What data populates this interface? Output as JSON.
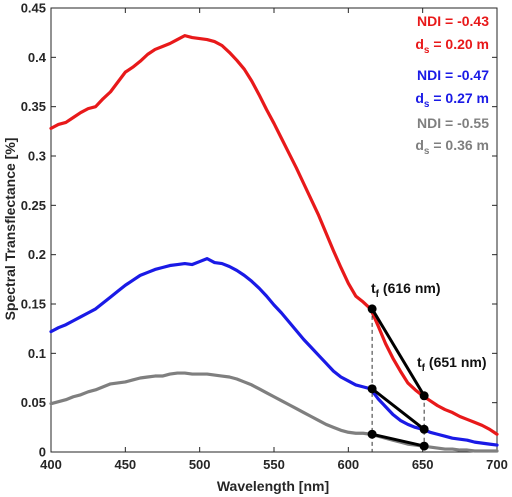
{
  "chart_data": {
    "type": "line",
    "xlabel": "Wavelength [nm]",
    "ylabel": "Spectral Transflectance [%]",
    "xlim": [
      400,
      700
    ],
    "ylim": [
      0,
      0.45
    ],
    "xticks": [
      400,
      450,
      500,
      550,
      600,
      650,
      700
    ],
    "yticks": [
      0,
      0.05,
      0.1,
      0.15,
      0.2,
      0.25,
      0.3,
      0.35,
      0.4,
      0.45
    ],
    "xtick_labels": [
      "400",
      "450",
      "500",
      "550",
      "600",
      "650",
      "700"
    ],
    "ytick_labels": [
      "0",
      "0.05",
      "0.1",
      "0.15",
      "0.2",
      "0.25",
      "0.3",
      "0.35",
      "0.4",
      "0.45"
    ],
    "grid": false,
    "series": [
      {
        "color": "#e8191a",
        "x": [
          400,
          405,
          410,
          415,
          420,
          425,
          430,
          435,
          440,
          445,
          450,
          455,
          460,
          465,
          470,
          475,
          480,
          485,
          490,
          495,
          500,
          505,
          510,
          515,
          520,
          525,
          530,
          535,
          540,
          545,
          550,
          555,
          560,
          565,
          570,
          575,
          580,
          585,
          590,
          595,
          600,
          605,
          610,
          615,
          620,
          625,
          630,
          635,
          640,
          645,
          650,
          655,
          660,
          665,
          670,
          675,
          680,
          685,
          690,
          695,
          700
        ],
        "y": [
          0.328,
          0.332,
          0.334,
          0.339,
          0.344,
          0.348,
          0.35,
          0.358,
          0.365,
          0.375,
          0.385,
          0.39,
          0.396,
          0.403,
          0.408,
          0.411,
          0.414,
          0.418,
          0.422,
          0.42,
          0.419,
          0.418,
          0.416,
          0.412,
          0.405,
          0.397,
          0.388,
          0.376,
          0.362,
          0.347,
          0.333,
          0.318,
          0.303,
          0.288,
          0.272,
          0.256,
          0.24,
          0.222,
          0.204,
          0.187,
          0.171,
          0.158,
          0.152,
          0.145,
          0.128,
          0.11,
          0.095,
          0.082,
          0.07,
          0.063,
          0.057,
          0.052,
          0.047,
          0.043,
          0.04,
          0.036,
          0.033,
          0.03,
          0.027,
          0.023,
          0.018
        ]
      },
      {
        "color": "#1a1ae6",
        "x": [
          400,
          405,
          410,
          415,
          420,
          425,
          430,
          435,
          440,
          445,
          450,
          455,
          460,
          465,
          470,
          475,
          480,
          485,
          490,
          495,
          500,
          505,
          510,
          515,
          520,
          525,
          530,
          535,
          540,
          545,
          550,
          555,
          560,
          565,
          570,
          575,
          580,
          585,
          590,
          595,
          600,
          605,
          610,
          615,
          620,
          625,
          630,
          635,
          640,
          645,
          650,
          655,
          660,
          665,
          670,
          675,
          680,
          685,
          690,
          695,
          700
        ],
        "y": [
          0.122,
          0.126,
          0.129,
          0.133,
          0.137,
          0.141,
          0.145,
          0.151,
          0.157,
          0.163,
          0.169,
          0.174,
          0.179,
          0.182,
          0.185,
          0.187,
          0.189,
          0.19,
          0.191,
          0.19,
          0.193,
          0.196,
          0.192,
          0.191,
          0.188,
          0.184,
          0.179,
          0.173,
          0.166,
          0.158,
          0.149,
          0.141,
          0.132,
          0.123,
          0.114,
          0.106,
          0.098,
          0.09,
          0.082,
          0.076,
          0.072,
          0.068,
          0.066,
          0.064,
          0.054,
          0.046,
          0.038,
          0.032,
          0.028,
          0.025,
          0.023,
          0.02,
          0.018,
          0.016,
          0.014,
          0.013,
          0.012,
          0.01,
          0.009,
          0.008,
          0.007
        ]
      },
      {
        "color": "#7f7f7f",
        "x": [
          400,
          405,
          410,
          415,
          420,
          425,
          430,
          435,
          440,
          445,
          450,
          455,
          460,
          465,
          470,
          475,
          480,
          485,
          490,
          495,
          500,
          505,
          510,
          515,
          520,
          525,
          530,
          535,
          540,
          545,
          550,
          555,
          560,
          565,
          570,
          575,
          580,
          585,
          590,
          595,
          600,
          605,
          610,
          615,
          620,
          625,
          630,
          635,
          640,
          645,
          650,
          655,
          660,
          665,
          670,
          675,
          680,
          685,
          690,
          695,
          700
        ],
        "y": [
          0.049,
          0.051,
          0.053,
          0.056,
          0.058,
          0.061,
          0.063,
          0.066,
          0.069,
          0.07,
          0.071,
          0.073,
          0.075,
          0.076,
          0.077,
          0.077,
          0.079,
          0.08,
          0.08,
          0.079,
          0.079,
          0.079,
          0.078,
          0.077,
          0.076,
          0.074,
          0.071,
          0.068,
          0.064,
          0.06,
          0.056,
          0.052,
          0.048,
          0.044,
          0.04,
          0.036,
          0.032,
          0.028,
          0.025,
          0.022,
          0.02,
          0.019,
          0.019,
          0.018,
          0.016,
          0.014,
          0.012,
          0.01,
          0.008,
          0.007,
          0.006,
          0.005,
          0.004,
          0.003,
          0.003,
          0.002,
          0.002,
          0.001,
          0.001,
          0.001,
          0.001
        ]
      }
    ],
    "legend": {
      "placement": "top-right",
      "entries": [
        {
          "color": "#e8191a",
          "ndi": "NDI = -0.43",
          "ds_sym": "d",
          "ds_sub": "s",
          "ds_val": " = 0.20 m"
        },
        {
          "color": "#1a1ae6",
          "ndi": "NDI = -0.47",
          "ds_sym": "d",
          "ds_sub": "s",
          "ds_val": " = 0.27 m"
        },
        {
          "color": "#7f7f7f",
          "ndi": "NDI = -0.55",
          "ds_sym": "d",
          "ds_sub": "s",
          "ds_val": " = 0.36 m"
        }
      ]
    },
    "markers": {
      "x": [
        616,
        651
      ],
      "points": [
        {
          "x": 616,
          "y": 0.145
        },
        {
          "x": 651,
          "y": 0.057
        },
        {
          "x": 616,
          "y": 0.064
        },
        {
          "x": 651,
          "y": 0.023
        },
        {
          "x": 616,
          "y": 0.018
        },
        {
          "x": 651,
          "y": 0.006
        }
      ],
      "segments": [
        [
          {
            "x": 616,
            "y": 0.145
          },
          {
            "x": 651,
            "y": 0.057
          }
        ],
        [
          {
            "x": 616,
            "y": 0.064
          },
          {
            "x": 651,
            "y": 0.023
          }
        ],
        [
          {
            "x": 616,
            "y": 0.018
          },
          {
            "x": 651,
            "y": 0.006
          }
        ]
      ]
    },
    "annotations": [
      {
        "sym": "t",
        "sub": "f",
        "text": " (616 nm)"
      },
      {
        "sym": "t",
        "sub": "f",
        "text": " (651 nm)"
      }
    ]
  }
}
